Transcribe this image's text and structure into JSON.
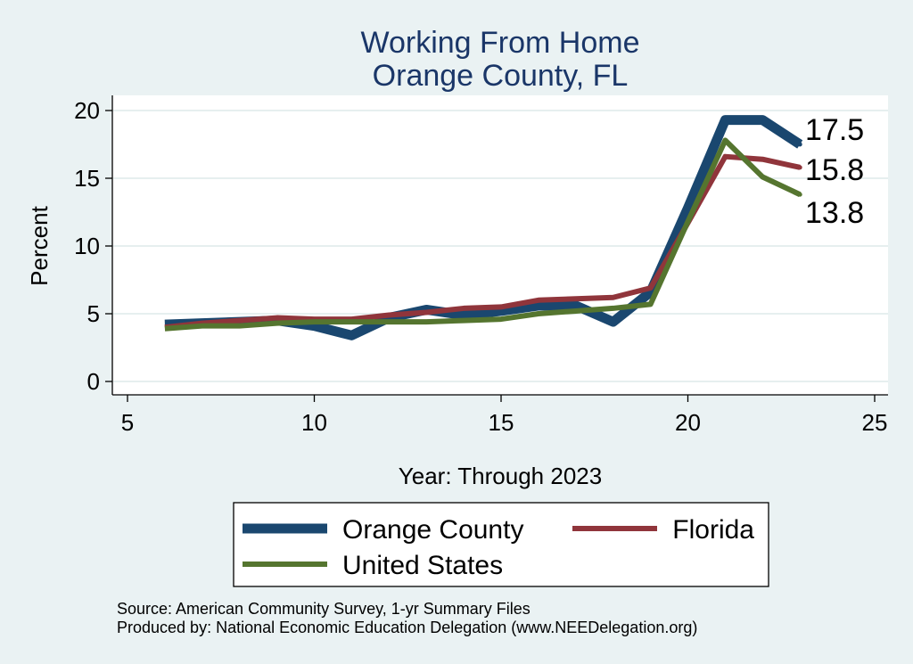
{
  "chart_data": {
    "type": "line",
    "title": [
      "Working From Home",
      "Orange County, FL"
    ],
    "xlabel": "Year: Through 2023",
    "ylabel": "Percent",
    "xlim": [
      5,
      25
    ],
    "ylim": [
      0,
      20
    ],
    "xticks": [
      5,
      10,
      15,
      20,
      25
    ],
    "yticks": [
      0,
      5,
      10,
      15,
      20
    ],
    "grid": true,
    "x": [
      6,
      7,
      8,
      9,
      10,
      11,
      12,
      13,
      14,
      15,
      16,
      17,
      18,
      19,
      20,
      21,
      22,
      23
    ],
    "series": [
      {
        "name": "Orange County",
        "color": "#1a476f",
        "values": [
          4.2,
          4.3,
          4.4,
          4.5,
          4.1,
          3.4,
          4.7,
          5.3,
          4.9,
          5.2,
          5.6,
          5.6,
          4.4,
          6.6,
          12.8,
          19.3,
          19.3,
          17.5
        ],
        "end_label": "17.5"
      },
      {
        "name": "Florida",
        "color": "#90353b",
        "values": [
          4.0,
          4.3,
          4.5,
          4.7,
          4.6,
          4.6,
          4.9,
          5.1,
          5.4,
          5.5,
          6.0,
          6.1,
          6.2,
          6.9,
          11.7,
          16.6,
          16.4,
          15.8
        ],
        "end_label": "15.8"
      },
      {
        "name": "United States",
        "color": "#55752f",
        "values": [
          3.9,
          4.1,
          4.1,
          4.3,
          4.4,
          4.4,
          4.4,
          4.4,
          4.5,
          4.6,
          5.0,
          5.2,
          5.4,
          5.7,
          11.8,
          17.8,
          15.1,
          13.8
        ],
        "end_label": "13.8"
      }
    ],
    "legend": {
      "position": "bottom",
      "entries": [
        "Orange County",
        "Florida",
        "United States"
      ]
    },
    "notes": [
      "Source: American Community Survey, 1-yr Summary Files",
      "Produced by: National Economic Education Delegation (www.NEEDelegation.org)"
    ]
  }
}
